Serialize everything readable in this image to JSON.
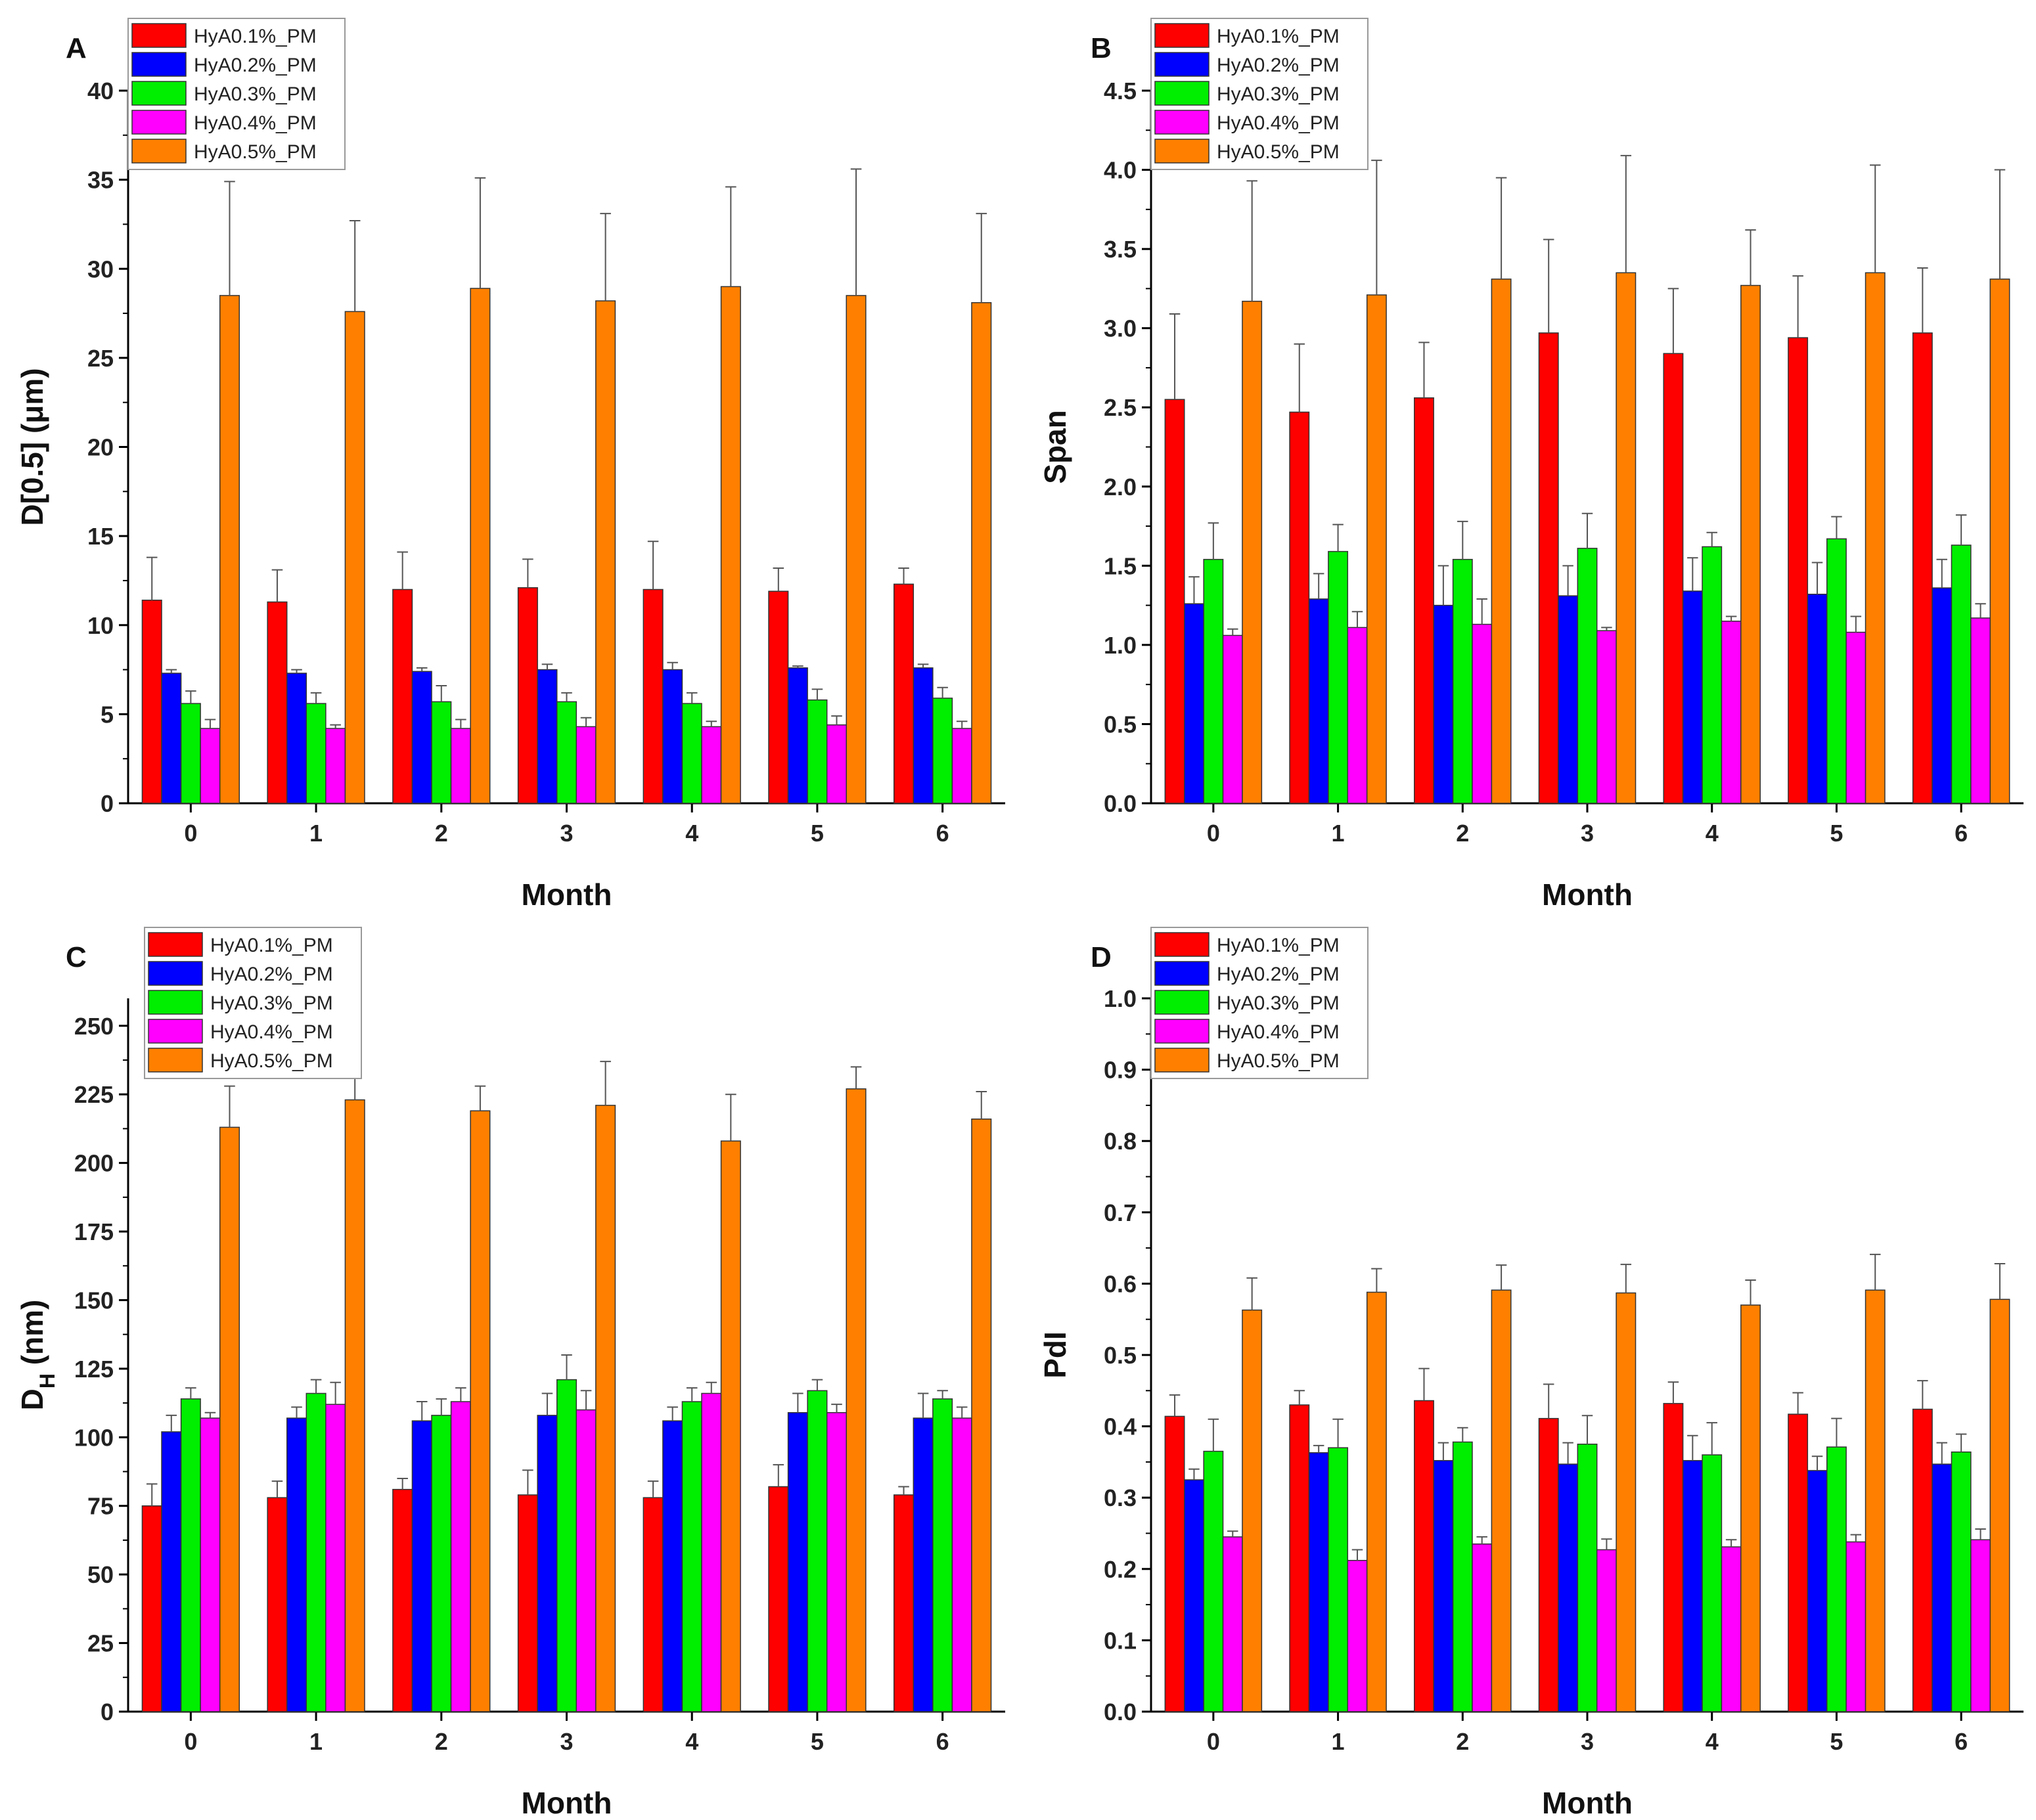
{
  "legend_entries": [
    "HyA0.1%_PM",
    "HyA0.2%_PM",
    "HyA0.3%_PM",
    "HyA0.4%_PM",
    "HyA0.5%_PM"
  ],
  "series_colors": [
    "#ff0000",
    "#0000ff",
    "#00ee00",
    "#ff00ff",
    "#ff8000"
  ],
  "chart_data": [
    {
      "type": "bar",
      "panel": "A",
      "xlabel": "Month",
      "ylabel": "D[0.5] (μm)",
      "ylabel_sub": "",
      "ylim": [
        0,
        40
      ],
      "yticks": [
        0,
        5,
        10,
        15,
        20,
        25,
        30,
        35,
        40
      ],
      "categories": [
        "0",
        "1",
        "2",
        "3",
        "4",
        "5",
        "6"
      ],
      "series": [
        {
          "name": "HyA0.1%_PM",
          "values": [
            11.4,
            11.3,
            12.0,
            12.1,
            12.0,
            11.9,
            12.3
          ],
          "errors": [
            2.4,
            1.8,
            2.1,
            1.6,
            2.7,
            1.3,
            0.9
          ]
        },
        {
          "name": "HyA0.2%_PM",
          "values": [
            7.3,
            7.3,
            7.4,
            7.5,
            7.5,
            7.6,
            7.6
          ],
          "errors": [
            0.2,
            0.2,
            0.2,
            0.3,
            0.4,
            0.1,
            0.2
          ]
        },
        {
          "name": "HyA0.3%_PM",
          "values": [
            5.6,
            5.6,
            5.7,
            5.7,
            5.6,
            5.8,
            5.9
          ],
          "errors": [
            0.7,
            0.6,
            0.9,
            0.5,
            0.6,
            0.6,
            0.6
          ]
        },
        {
          "name": "HyA0.4%_PM",
          "values": [
            4.2,
            4.2,
            4.2,
            4.3,
            4.3,
            4.4,
            4.2
          ],
          "errors": [
            0.5,
            0.2,
            0.5,
            0.5,
            0.3,
            0.5,
            0.4
          ]
        },
        {
          "name": "HyA0.5%_PM",
          "values": [
            28.5,
            27.6,
            28.9,
            28.2,
            29.0,
            28.5,
            28.1
          ],
          "errors": [
            6.4,
            5.1,
            6.2,
            4.9,
            5.6,
            7.1,
            5.0
          ]
        }
      ]
    },
    {
      "type": "bar",
      "panel": "B",
      "xlabel": "Month",
      "ylabel": "Span",
      "ylabel_sub": "",
      "ylim": [
        0,
        4.5
      ],
      "yticks": [
        0.0,
        0.5,
        1.0,
        1.5,
        2.0,
        2.5,
        3.0,
        3.5,
        4.0,
        4.5
      ],
      "tick_decimals": 1,
      "categories": [
        "0",
        "1",
        "2",
        "3",
        "4",
        "5",
        "6"
      ],
      "series": [
        {
          "name": "HyA0.1%_PM",
          "values": [
            2.55,
            2.47,
            2.56,
            2.97,
            2.84,
            2.94,
            2.97
          ],
          "errors": [
            0.54,
            0.43,
            0.35,
            0.59,
            0.41,
            0.39,
            0.41
          ]
        },
        {
          "name": "HyA0.2%_PM",
          "values": [
            1.26,
            1.29,
            1.25,
            1.31,
            1.34,
            1.32,
            1.36
          ],
          "errors": [
            0.17,
            0.16,
            0.25,
            0.19,
            0.21,
            0.2,
            0.18
          ]
        },
        {
          "name": "HyA0.3%_PM",
          "values": [
            1.54,
            1.59,
            1.54,
            1.61,
            1.62,
            1.67,
            1.63
          ],
          "errors": [
            0.23,
            0.17,
            0.24,
            0.22,
            0.09,
            0.14,
            0.19
          ]
        },
        {
          "name": "HyA0.4%_PM",
          "values": [
            1.06,
            1.11,
            1.13,
            1.09,
            1.15,
            1.08,
            1.17
          ],
          "errors": [
            0.04,
            0.1,
            0.16,
            0.02,
            0.03,
            0.1,
            0.09
          ]
        },
        {
          "name": "HyA0.5%_PM",
          "values": [
            3.17,
            3.21,
            3.31,
            3.35,
            3.27,
            3.35,
            3.31
          ],
          "errors": [
            0.76,
            0.85,
            0.64,
            0.74,
            0.35,
            0.68,
            0.69
          ]
        }
      ]
    },
    {
      "type": "bar",
      "panel": "C",
      "xlabel": "Month",
      "ylabel": "D",
      "ylabel_sub": "H",
      "ylabel_suffix": " (nm)",
      "ylim": [
        0,
        260
      ],
      "yticks": [
        0,
        25,
        50,
        75,
        100,
        125,
        150,
        175,
        200,
        225,
        250
      ],
      "categories": [
        "0",
        "1",
        "2",
        "3",
        "4",
        "5",
        "6"
      ],
      "series": [
        {
          "name": "HyA0.1%_PM",
          "values": [
            75,
            78,
            81,
            79,
            78,
            82,
            79
          ],
          "errors": [
            8,
            6,
            4,
            9,
            6,
            8,
            3
          ]
        },
        {
          "name": "HyA0.2%_PM",
          "values": [
            102,
            107,
            106,
            108,
            106,
            109,
            107
          ],
          "errors": [
            6,
            4,
            7,
            8,
            5,
            7,
            9
          ]
        },
        {
          "name": "HyA0.3%_PM",
          "values": [
            114,
            116,
            108,
            121,
            113,
            117,
            114
          ],
          "errors": [
            4,
            5,
            6,
            9,
            5,
            4,
            3
          ]
        },
        {
          "name": "HyA0.4%_PM",
          "values": [
            107,
            112,
            113,
            110,
            116,
            109,
            107
          ],
          "errors": [
            2,
            8,
            5,
            7,
            4,
            3,
            4
          ]
        },
        {
          "name": "HyA0.5%_PM",
          "values": [
            213,
            223,
            219,
            221,
            208,
            227,
            216
          ],
          "errors": [
            15,
            11,
            9,
            16,
            17,
            8,
            10
          ]
        }
      ]
    },
    {
      "type": "bar",
      "panel": "D",
      "xlabel": "Month",
      "ylabel": "PdI",
      "ylabel_sub": "",
      "ylim": [
        0,
        1.0
      ],
      "yticks": [
        0.0,
        0.1,
        0.2,
        0.3,
        0.4,
        0.5,
        0.6,
        0.7,
        0.8,
        0.9,
        1.0
      ],
      "tick_decimals": 1,
      "categories": [
        "0",
        "1",
        "2",
        "3",
        "4",
        "5",
        "6"
      ],
      "series": [
        {
          "name": "HyA0.1%_PM",
          "values": [
            0.414,
            0.43,
            0.436,
            0.411,
            0.432,
            0.417,
            0.424
          ],
          "errors": [
            0.03,
            0.02,
            0.045,
            0.048,
            0.03,
            0.03,
            0.04
          ]
        },
        {
          "name": "HyA0.2%_PM",
          "values": [
            0.325,
            0.363,
            0.352,
            0.347,
            0.352,
            0.338,
            0.347
          ],
          "errors": [
            0.015,
            0.01,
            0.025,
            0.03,
            0.035,
            0.02,
            0.03
          ]
        },
        {
          "name": "HyA0.3%_PM",
          "values": [
            0.365,
            0.37,
            0.378,
            0.375,
            0.36,
            0.371,
            0.364
          ],
          "errors": [
            0.045,
            0.04,
            0.02,
            0.04,
            0.045,
            0.04,
            0.025
          ]
        },
        {
          "name": "HyA0.4%_PM",
          "values": [
            0.245,
            0.212,
            0.235,
            0.227,
            0.231,
            0.238,
            0.241
          ],
          "errors": [
            0.008,
            0.015,
            0.01,
            0.015,
            0.01,
            0.01,
            0.015
          ]
        },
        {
          "name": "HyA0.5%_PM",
          "values": [
            0.563,
            0.588,
            0.591,
            0.587,
            0.57,
            0.591,
            0.578
          ],
          "errors": [
            0.045,
            0.033,
            0.035,
            0.04,
            0.035,
            0.05,
            0.05
          ]
        }
      ]
    }
  ]
}
